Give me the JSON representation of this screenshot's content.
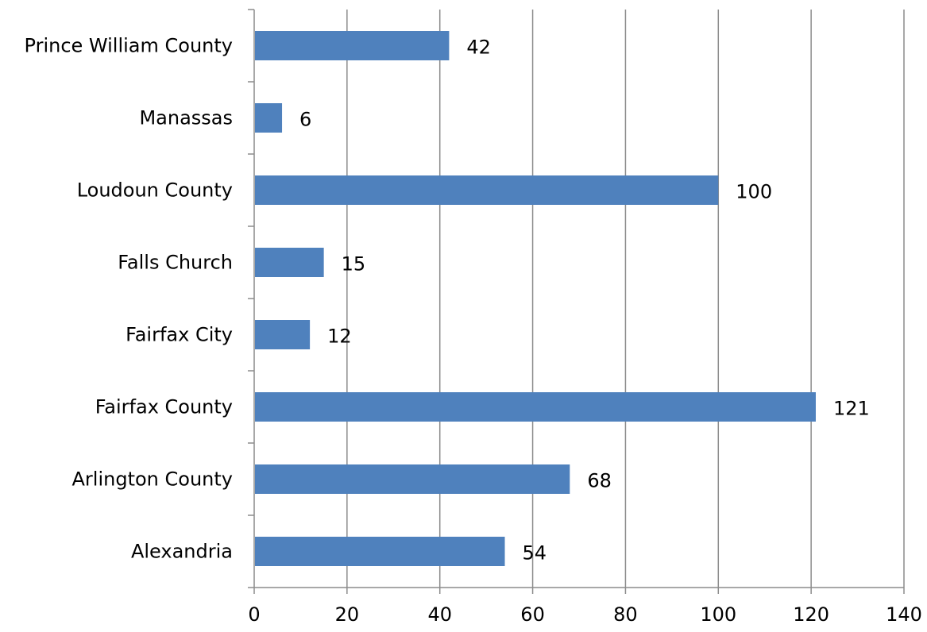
{
  "chart_data": {
    "type": "bar",
    "orientation": "horizontal",
    "categories": [
      "Prince William County",
      "Manassas",
      "Loudoun County",
      "Falls Church",
      "Fairfax City",
      "Fairfax County",
      "Arlington County",
      "Alexandria"
    ],
    "values": [
      42,
      6,
      100,
      15,
      12,
      121,
      68,
      54
    ],
    "value_labels": [
      "42",
      "6",
      "100",
      "15",
      "12",
      "121",
      "68",
      "54"
    ],
    "x_ticks": [
      0,
      20,
      40,
      60,
      80,
      100,
      120,
      140
    ],
    "x_tick_labels": [
      "0",
      "20",
      "40",
      "60",
      "80",
      "100",
      "120",
      "140"
    ],
    "xlim": [
      0,
      140
    ],
    "title": "",
    "xlabel": "",
    "ylabel": "",
    "grid": "vertical",
    "legend": "none",
    "bar_color": "#4f81bd",
    "grid_color": "#8c8c8c"
  }
}
